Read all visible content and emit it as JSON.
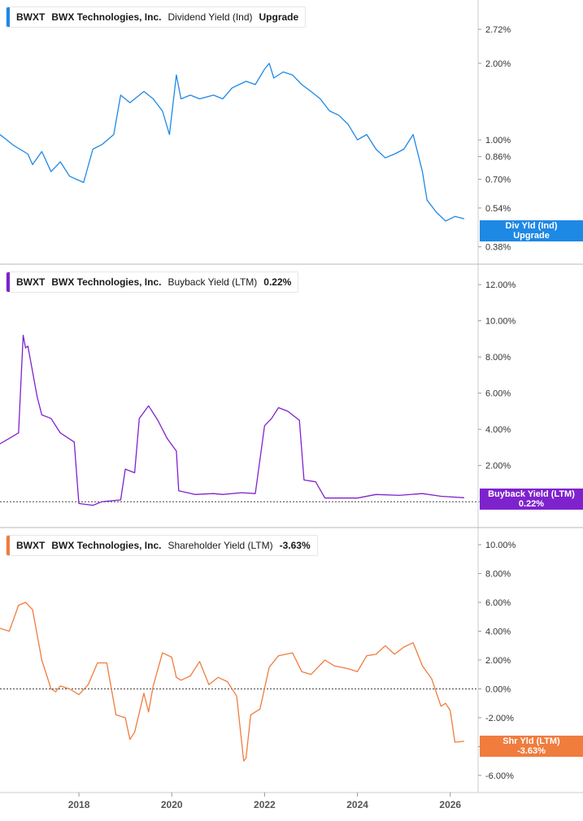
{
  "chart_data": [
    {
      "type": "line",
      "ticker": "BWXT",
      "company": "BWX Technologies, Inc.",
      "metric": "Dividend Yield (Ind)",
      "legend_value": "Upgrade",
      "color": "#1e88e5",
      "scale": "log",
      "ylim": [
        0.36,
        3.2
      ],
      "yticks": [
        "2.72%",
        "2.00%",
        "1.00%",
        "0.86%",
        "0.70%",
        "0.54%",
        "0.38%"
      ],
      "ytick_values": [
        2.72,
        2.0,
        1.0,
        0.86,
        0.7,
        0.54,
        0.38
      ],
      "end_tag": [
        "Div Yld (Ind)",
        "Upgrade"
      ],
      "x": [
        2016.3,
        2016.6,
        2016.9,
        2017.0,
        2017.2,
        2017.4,
        2017.6,
        2017.8,
        2018.1,
        2018.3,
        2018.5,
        2018.75,
        2018.9,
        2019.1,
        2019.4,
        2019.6,
        2019.8,
        2019.95,
        2020.1,
        2020.2,
        2020.4,
        2020.6,
        2020.9,
        2021.1,
        2021.3,
        2021.6,
        2021.8,
        2022.0,
        2022.1,
        2022.2,
        2022.4,
        2022.6,
        2022.8,
        2023.0,
        2023.2,
        2023.4,
        2023.6,
        2023.8,
        2024.0,
        2024.2,
        2024.4,
        2024.6,
        2024.8,
        2025.0,
        2025.2,
        2025.4,
        2025.5,
        2025.7,
        2025.9,
        2026.1,
        2026.3
      ],
      "values": [
        1.05,
        0.95,
        0.88,
        0.8,
        0.9,
        0.75,
        0.82,
        0.72,
        0.68,
        0.92,
        0.96,
        1.05,
        1.5,
        1.4,
        1.55,
        1.45,
        1.3,
        1.05,
        1.8,
        1.45,
        1.5,
        1.45,
        1.5,
        1.45,
        1.6,
        1.7,
        1.65,
        1.9,
        2.0,
        1.75,
        1.85,
        1.8,
        1.65,
        1.55,
        1.45,
        1.3,
        1.25,
        1.15,
        1.0,
        1.05,
        0.92,
        0.85,
        0.88,
        0.92,
        1.05,
        0.75,
        0.58,
        0.52,
        0.48,
        0.5,
        0.49
      ]
    },
    {
      "type": "line",
      "ticker": "BWXT",
      "company": "BWX Technologies, Inc.",
      "metric": "Buyback Yield (LTM)",
      "legend_value": "0.22%",
      "color": "#7e22ce",
      "ylim": [
        -0.8,
        12.5
      ],
      "yticks": [
        "12.00%",
        "10.00%",
        "8.00%",
        "6.00%",
        "4.00%",
        "2.00%",
        "0.00%"
      ],
      "ytick_values": [
        12,
        10,
        8,
        6,
        4,
        2,
        0
      ],
      "end_tag": [
        "Buyback Yield (LTM)",
        "0.22%"
      ],
      "x": [
        2016.3,
        2016.5,
        2016.7,
        2016.8,
        2016.85,
        2016.9,
        2017.1,
        2017.2,
        2017.4,
        2017.6,
        2017.9,
        2018.0,
        2018.3,
        2018.5,
        2018.9,
        2019.0,
        2019.2,
        2019.3,
        2019.5,
        2019.7,
        2019.9,
        2020.1,
        2020.15,
        2020.5,
        2020.9,
        2021.1,
        2021.5,
        2021.8,
        2022.0,
        2022.15,
        2022.3,
        2022.5,
        2022.75,
        2022.85,
        2023.1,
        2023.3,
        2023.6,
        2024.0,
        2024.4,
        2024.9,
        2025.4,
        2025.8,
        2026.3
      ],
      "values": [
        3.2,
        3.5,
        3.8,
        9.2,
        8.5,
        8.6,
        5.8,
        4.8,
        4.6,
        3.8,
        3.3,
        -0.1,
        -0.2,
        0.0,
        0.1,
        1.8,
        1.6,
        4.6,
        5.3,
        4.5,
        3.5,
        2.8,
        0.6,
        0.4,
        0.45,
        0.4,
        0.5,
        0.45,
        4.2,
        4.6,
        5.2,
        5.0,
        4.5,
        1.2,
        1.1,
        0.2,
        0.2,
        0.2,
        0.4,
        0.35,
        0.45,
        0.3,
        0.22
      ]
    },
    {
      "type": "line",
      "ticker": "BWXT",
      "company": "BWX Technologies, Inc.",
      "metric": "Shareholder Yield (LTM)",
      "legend_value": "-3.63%",
      "color": "#f07c3e",
      "ylim": [
        -6.4,
        10.4
      ],
      "yticks": [
        "10.00%",
        "8.00%",
        "6.00%",
        "4.00%",
        "2.00%",
        "0.00%",
        "-2.00%",
        "-4.00%",
        "-6.00%"
      ],
      "ytick_values": [
        10,
        8,
        6,
        4,
        2,
        0,
        -2,
        -4,
        -6
      ],
      "end_tag": [
        "Shr Yld (LTM)",
        "-3.63%"
      ],
      "x": [
        2016.3,
        2016.5,
        2016.7,
        2016.85,
        2017.0,
        2017.2,
        2017.4,
        2017.5,
        2017.6,
        2017.8,
        2018.0,
        2018.2,
        2018.4,
        2018.6,
        2018.8,
        2019.0,
        2019.1,
        2019.2,
        2019.4,
        2019.5,
        2019.6,
        2019.8,
        2020.0,
        2020.1,
        2020.2,
        2020.4,
        2020.6,
        2020.8,
        2021.0,
        2021.2,
        2021.4,
        2021.55,
        2021.6,
        2021.7,
        2021.9,
        2022.1,
        2022.3,
        2022.6,
        2022.8,
        2023.0,
        2023.3,
        2023.5,
        2023.8,
        2024.0,
        2024.2,
        2024.4,
        2024.6,
        2024.8,
        2025.0,
        2025.2,
        2025.4,
        2025.6,
        2025.8,
        2025.9,
        2026.0,
        2026.1,
        2026.3
      ],
      "values": [
        4.2,
        4.0,
        5.8,
        6.0,
        5.5,
        2.0,
        0.0,
        -0.2,
        0.2,
        0.0,
        -0.4,
        0.3,
        1.8,
        1.8,
        -1.8,
        -2.0,
        -3.5,
        -3.0,
        -0.3,
        -1.6,
        0.2,
        2.5,
        2.2,
        0.8,
        0.6,
        0.9,
        1.9,
        0.3,
        0.8,
        0.5,
        -0.5,
        -5.0,
        -4.8,
        -1.8,
        -1.4,
        1.5,
        2.3,
        2.5,
        1.2,
        1.0,
        2.0,
        1.6,
        1.4,
        1.2,
        2.3,
        2.4,
        3.0,
        2.4,
        2.9,
        3.2,
        1.6,
        0.7,
        -1.2,
        -1.0,
        -1.5,
        -3.7,
        -3.63
      ]
    }
  ],
  "x_axis": {
    "ticks": [
      "2018",
      "2020",
      "2022",
      "2024",
      "2026"
    ],
    "tick_values": [
      2018,
      2020,
      2022,
      2024,
      2026
    ],
    "xlim": [
      2016.3,
      2026.6
    ]
  }
}
